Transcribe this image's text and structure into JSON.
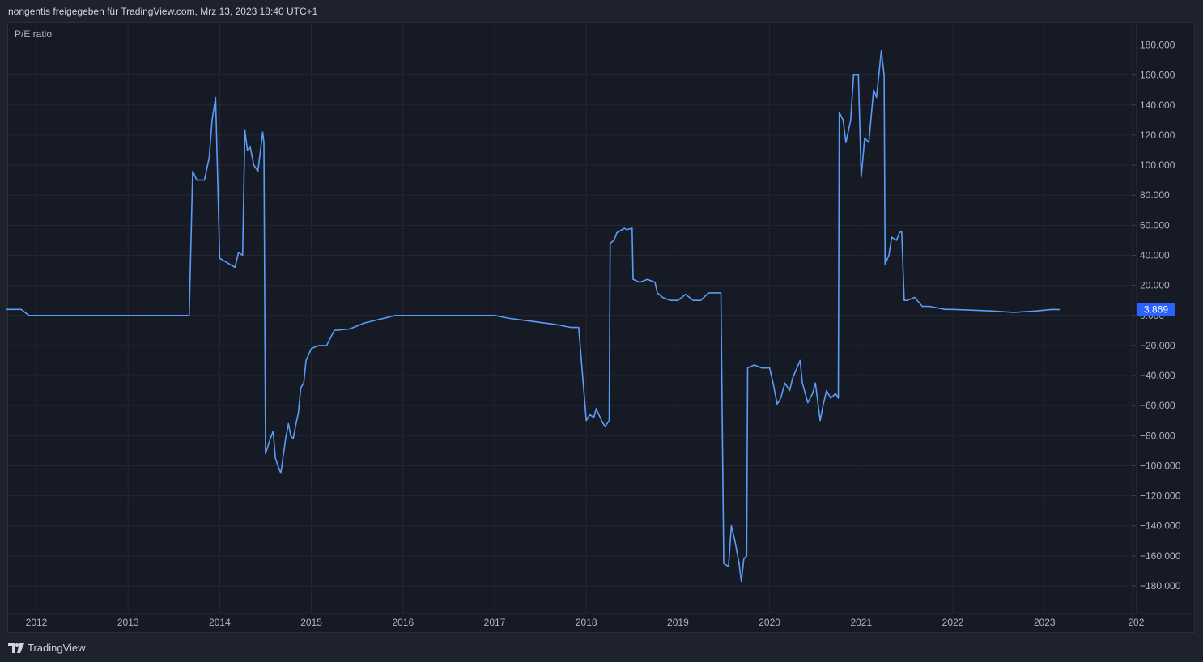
{
  "header": {
    "text": "nongentis freigegeben für TradingView.com, Mrz 13, 2023 18:40 UTC+1"
  },
  "footer": {
    "brand": "TradingView",
    "logo_icon": "tradingview-logo-icon"
  },
  "colors": {
    "background": "#1e222d",
    "plot": "#161a25",
    "grid": "#232733",
    "line": "#5b9cf6",
    "text": "#b2b5be",
    "badge": "#2962ff"
  },
  "chart_data": {
    "type": "line",
    "title": "P/E ratio",
    "x_tick_labels": [
      "2012",
      "2013",
      "2014",
      "2015",
      "2016",
      "2017",
      "2018",
      "2019",
      "2020",
      "2021",
      "2022",
      "2023",
      "202"
    ],
    "y_tick_labels": [
      "180.000",
      "160.000",
      "140.000",
      "120.000",
      "100.000",
      "80.000",
      "60.000",
      "40.000",
      "20.000",
      "0.000",
      "−20.000",
      "−40.000",
      "−60.000",
      "−80.000",
      "−100.000",
      "−120.000",
      "−140.000",
      "−160.000",
      "−180.000"
    ],
    "ylim": [
      -190,
      190
    ],
    "grid": true,
    "last_value_label": "3.869",
    "series": [
      {
        "points": [
          [
            "2011-09",
            4
          ],
          [
            "2011-11",
            4
          ],
          [
            "2011-12",
            0
          ],
          [
            "2012-06",
            0
          ],
          [
            "2013-01",
            0
          ],
          [
            "2013-06",
            0
          ],
          [
            "2013-09",
            0
          ],
          [
            "2013-09-15",
            96
          ],
          [
            "2013-10",
            90
          ],
          [
            "2013-11",
            90
          ],
          [
            "2013-11-20",
            105
          ],
          [
            "2013-12",
            130
          ],
          [
            "2013-12-15",
            145
          ],
          [
            "2014-01",
            38
          ],
          [
            "2014-02",
            35
          ],
          [
            "2014-03",
            32
          ],
          [
            "2014-03-15",
            42
          ],
          [
            "2014-04",
            40
          ],
          [
            "2014-04-10",
            123
          ],
          [
            "2014-04-20",
            110
          ],
          [
            "2014-05",
            112
          ],
          [
            "2014-05-15",
            100
          ],
          [
            "2014-06",
            96
          ],
          [
            "2014-06-10",
            108
          ],
          [
            "2014-06-20",
            122
          ],
          [
            "2014-06-25",
            115
          ],
          [
            "2014-07",
            -92
          ],
          [
            "2014-07-20",
            -82
          ],
          [
            "2014-08",
            -77
          ],
          [
            "2014-08-10",
            -95
          ],
          [
            "2014-08-20",
            -100
          ],
          [
            "2014-09",
            -105
          ],
          [
            "2014-09-20",
            -82
          ],
          [
            "2014-10",
            -72
          ],
          [
            "2014-10-10",
            -80
          ],
          [
            "2014-10-20",
            -82
          ],
          [
            "2014-11",
            -72
          ],
          [
            "2014-11-10",
            -65
          ],
          [
            "2014-11-20",
            -48
          ],
          [
            "2014-12",
            -45
          ],
          [
            "2014-12-10",
            -30
          ],
          [
            "2015-01",
            -22
          ],
          [
            "2015-02",
            -20
          ],
          [
            "2015-03",
            -20
          ],
          [
            "2015-04",
            -10
          ],
          [
            "2015-06",
            -9
          ],
          [
            "2015-08",
            -5
          ],
          [
            "2015-12",
            0
          ],
          [
            "2016-06",
            0
          ],
          [
            "2016-12",
            0
          ],
          [
            "2017-01",
            0
          ],
          [
            "2017-03",
            -2
          ],
          [
            "2017-06",
            -4
          ],
          [
            "2017-09",
            -6
          ],
          [
            "2017-11",
            -8
          ],
          [
            "2017-12",
            -8
          ],
          [
            "2018-01",
            -70
          ],
          [
            "2018-01-15",
            -66
          ],
          [
            "2018-02",
            -68
          ],
          [
            "2018-02-10",
            -62
          ],
          [
            "2018-03",
            -70
          ],
          [
            "2018-03-15",
            -74
          ],
          [
            "2018-04",
            -70
          ],
          [
            "2018-04-05",
            48
          ],
          [
            "2018-04-20",
            50
          ],
          [
            "2018-05",
            55
          ],
          [
            "2018-06",
            58
          ],
          [
            "2018-06-10",
            57
          ],
          [
            "2018-07",
            58
          ],
          [
            "2018-07-05",
            24
          ],
          [
            "2018-08",
            22
          ],
          [
            "2018-09",
            24
          ],
          [
            "2018-10",
            22
          ],
          [
            "2018-10-10",
            15
          ],
          [
            "2018-11",
            12
          ],
          [
            "2018-12",
            10
          ],
          [
            "2019-01",
            10
          ],
          [
            "2019-02",
            14
          ],
          [
            "2019-03",
            10
          ],
          [
            "2019-04",
            10
          ],
          [
            "2019-05",
            15
          ],
          [
            "2019-06",
            15
          ],
          [
            "2019-06-20",
            15
          ],
          [
            "2019-07",
            -165
          ],
          [
            "2019-07-20",
            -167
          ],
          [
            "2019-08",
            -140
          ],
          [
            "2019-08-15",
            -150
          ],
          [
            "2019-09",
            -165
          ],
          [
            "2019-09-10",
            -177
          ],
          [
            "2019-09-20",
            -162
          ],
          [
            "2019-10",
            -160
          ],
          [
            "2019-10-05",
            -35
          ],
          [
            "2019-11",
            -33
          ],
          [
            "2019-12",
            -35
          ],
          [
            "2020-01",
            -35
          ],
          [
            "2020-01-15",
            -45
          ],
          [
            "2020-02",
            -59
          ],
          [
            "2020-02-15",
            -55
          ],
          [
            "2020-03",
            -45
          ],
          [
            "2020-03-20",
            -50
          ],
          [
            "2020-04",
            -42
          ],
          [
            "2020-05",
            -30
          ],
          [
            "2020-05-10",
            -45
          ],
          [
            "2020-06",
            -58
          ],
          [
            "2020-06-20",
            -52
          ],
          [
            "2020-07",
            -45
          ],
          [
            "2020-07-20",
            -70
          ],
          [
            "2020-08",
            -60
          ],
          [
            "2020-08-15",
            -50
          ],
          [
            "2020-09",
            -55
          ],
          [
            "2020-09-20",
            -52
          ],
          [
            "2020-10",
            -55
          ],
          [
            "2020-10-05",
            135
          ],
          [
            "2020-10-20",
            130
          ],
          [
            "2020-11",
            115
          ],
          [
            "2020-11-20",
            130
          ],
          [
            "2020-12",
            160
          ],
          [
            "2020-12-20",
            160
          ],
          [
            "2021-01",
            92
          ],
          [
            "2021-01-15",
            118
          ],
          [
            "2021-02",
            115
          ],
          [
            "2021-02-20",
            150
          ],
          [
            "2021-03",
            145
          ],
          [
            "2021-03-20",
            176
          ],
          [
            "2021-04",
            160
          ],
          [
            "2021-04-05",
            34
          ],
          [
            "2021-04-20",
            40
          ],
          [
            "2021-05",
            52
          ],
          [
            "2021-05-20",
            50
          ],
          [
            "2021-06",
            55
          ],
          [
            "2021-06-10",
            56
          ],
          [
            "2021-06-20",
            10
          ],
          [
            "2021-07",
            10
          ],
          [
            "2021-08",
            12
          ],
          [
            "2021-09",
            6
          ],
          [
            "2021-10",
            6
          ],
          [
            "2021-12",
            4
          ],
          [
            "2022-01",
            4
          ],
          [
            "2022-06",
            3
          ],
          [
            "2022-09",
            2
          ],
          [
            "2022-12",
            3
          ],
          [
            "2023-02",
            4
          ],
          [
            "2023-03",
            3.869
          ]
        ]
      }
    ]
  }
}
